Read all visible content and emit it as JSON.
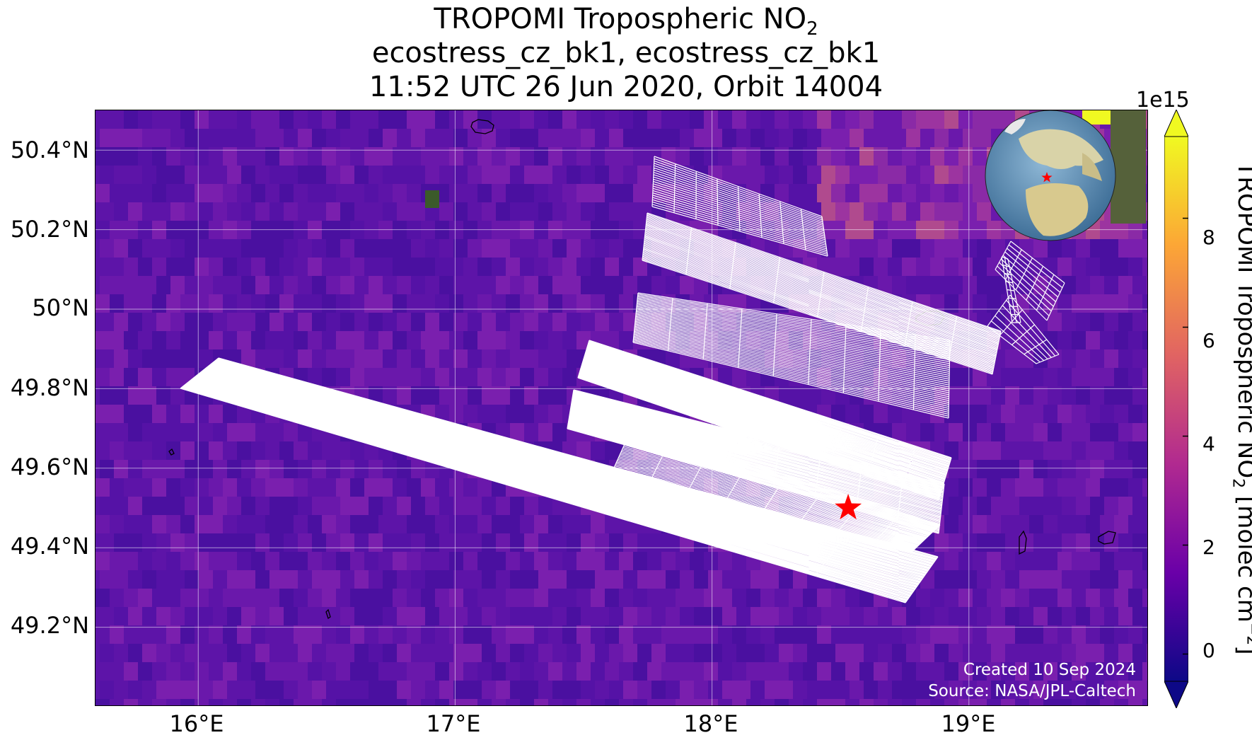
{
  "title": {
    "line1_prefix": "TROPOMI Tropospheric NO",
    "line1_sub": "2",
    "line2": "ecostress_cz_bk1, ecostress_cz_bk1",
    "line3": "11:52 UTC 26 Jun 2020, Orbit 14004"
  },
  "axes": {
    "lon_range": [
      15.6,
      19.7
    ],
    "lat_range": [
      49.0,
      50.5
    ],
    "x_ticks": [
      {
        "value": 16,
        "label": "16°E"
      },
      {
        "value": 17,
        "label": "17°E"
      },
      {
        "value": 18,
        "label": "18°E"
      },
      {
        "value": 19,
        "label": "19°E"
      }
    ],
    "y_ticks": [
      {
        "value": 50.4,
        "label": "50.4°N"
      },
      {
        "value": 50.2,
        "label": "50.2°N"
      },
      {
        "value": 50.0,
        "label": "50°N"
      },
      {
        "value": 49.8,
        "label": "49.8°N"
      },
      {
        "value": 49.6,
        "label": "49.6°N"
      },
      {
        "value": 49.4,
        "label": "49.4°N"
      },
      {
        "value": 49.2,
        "label": "49.2°N"
      }
    ]
  },
  "colorbar": {
    "scale_label": "1e15",
    "label_prefix": "TROPOMI Tropospheric NO",
    "label_sub": "2",
    "label_suffix": " [molec cm",
    "label_sup": "−2",
    "label_end": "]",
    "range": [
      -0.5,
      9.5
    ],
    "ticks": [
      {
        "value": 0,
        "label": "0"
      },
      {
        "value": 2,
        "label": "2"
      },
      {
        "value": 4,
        "label": "4"
      },
      {
        "value": 6,
        "label": "6"
      },
      {
        "value": 8,
        "label": "8"
      }
    ],
    "colormap": [
      "#0d0887",
      "#6a00a8",
      "#b12a90",
      "#e16462",
      "#fca636",
      "#f0f921"
    ],
    "extend": "both"
  },
  "credits": {
    "created": "Created 10 Sep 2024",
    "source": "Source: NASA/JPL-Caltech"
  },
  "target_marker": {
    "lon": 18.53,
    "lat": 49.5,
    "color": "#ff0000",
    "icon": "star-icon"
  },
  "swaths_color": "#ffffff",
  "inset_globe": {
    "marker_icon": "star-icon",
    "marker_color": "#ff0000"
  }
}
